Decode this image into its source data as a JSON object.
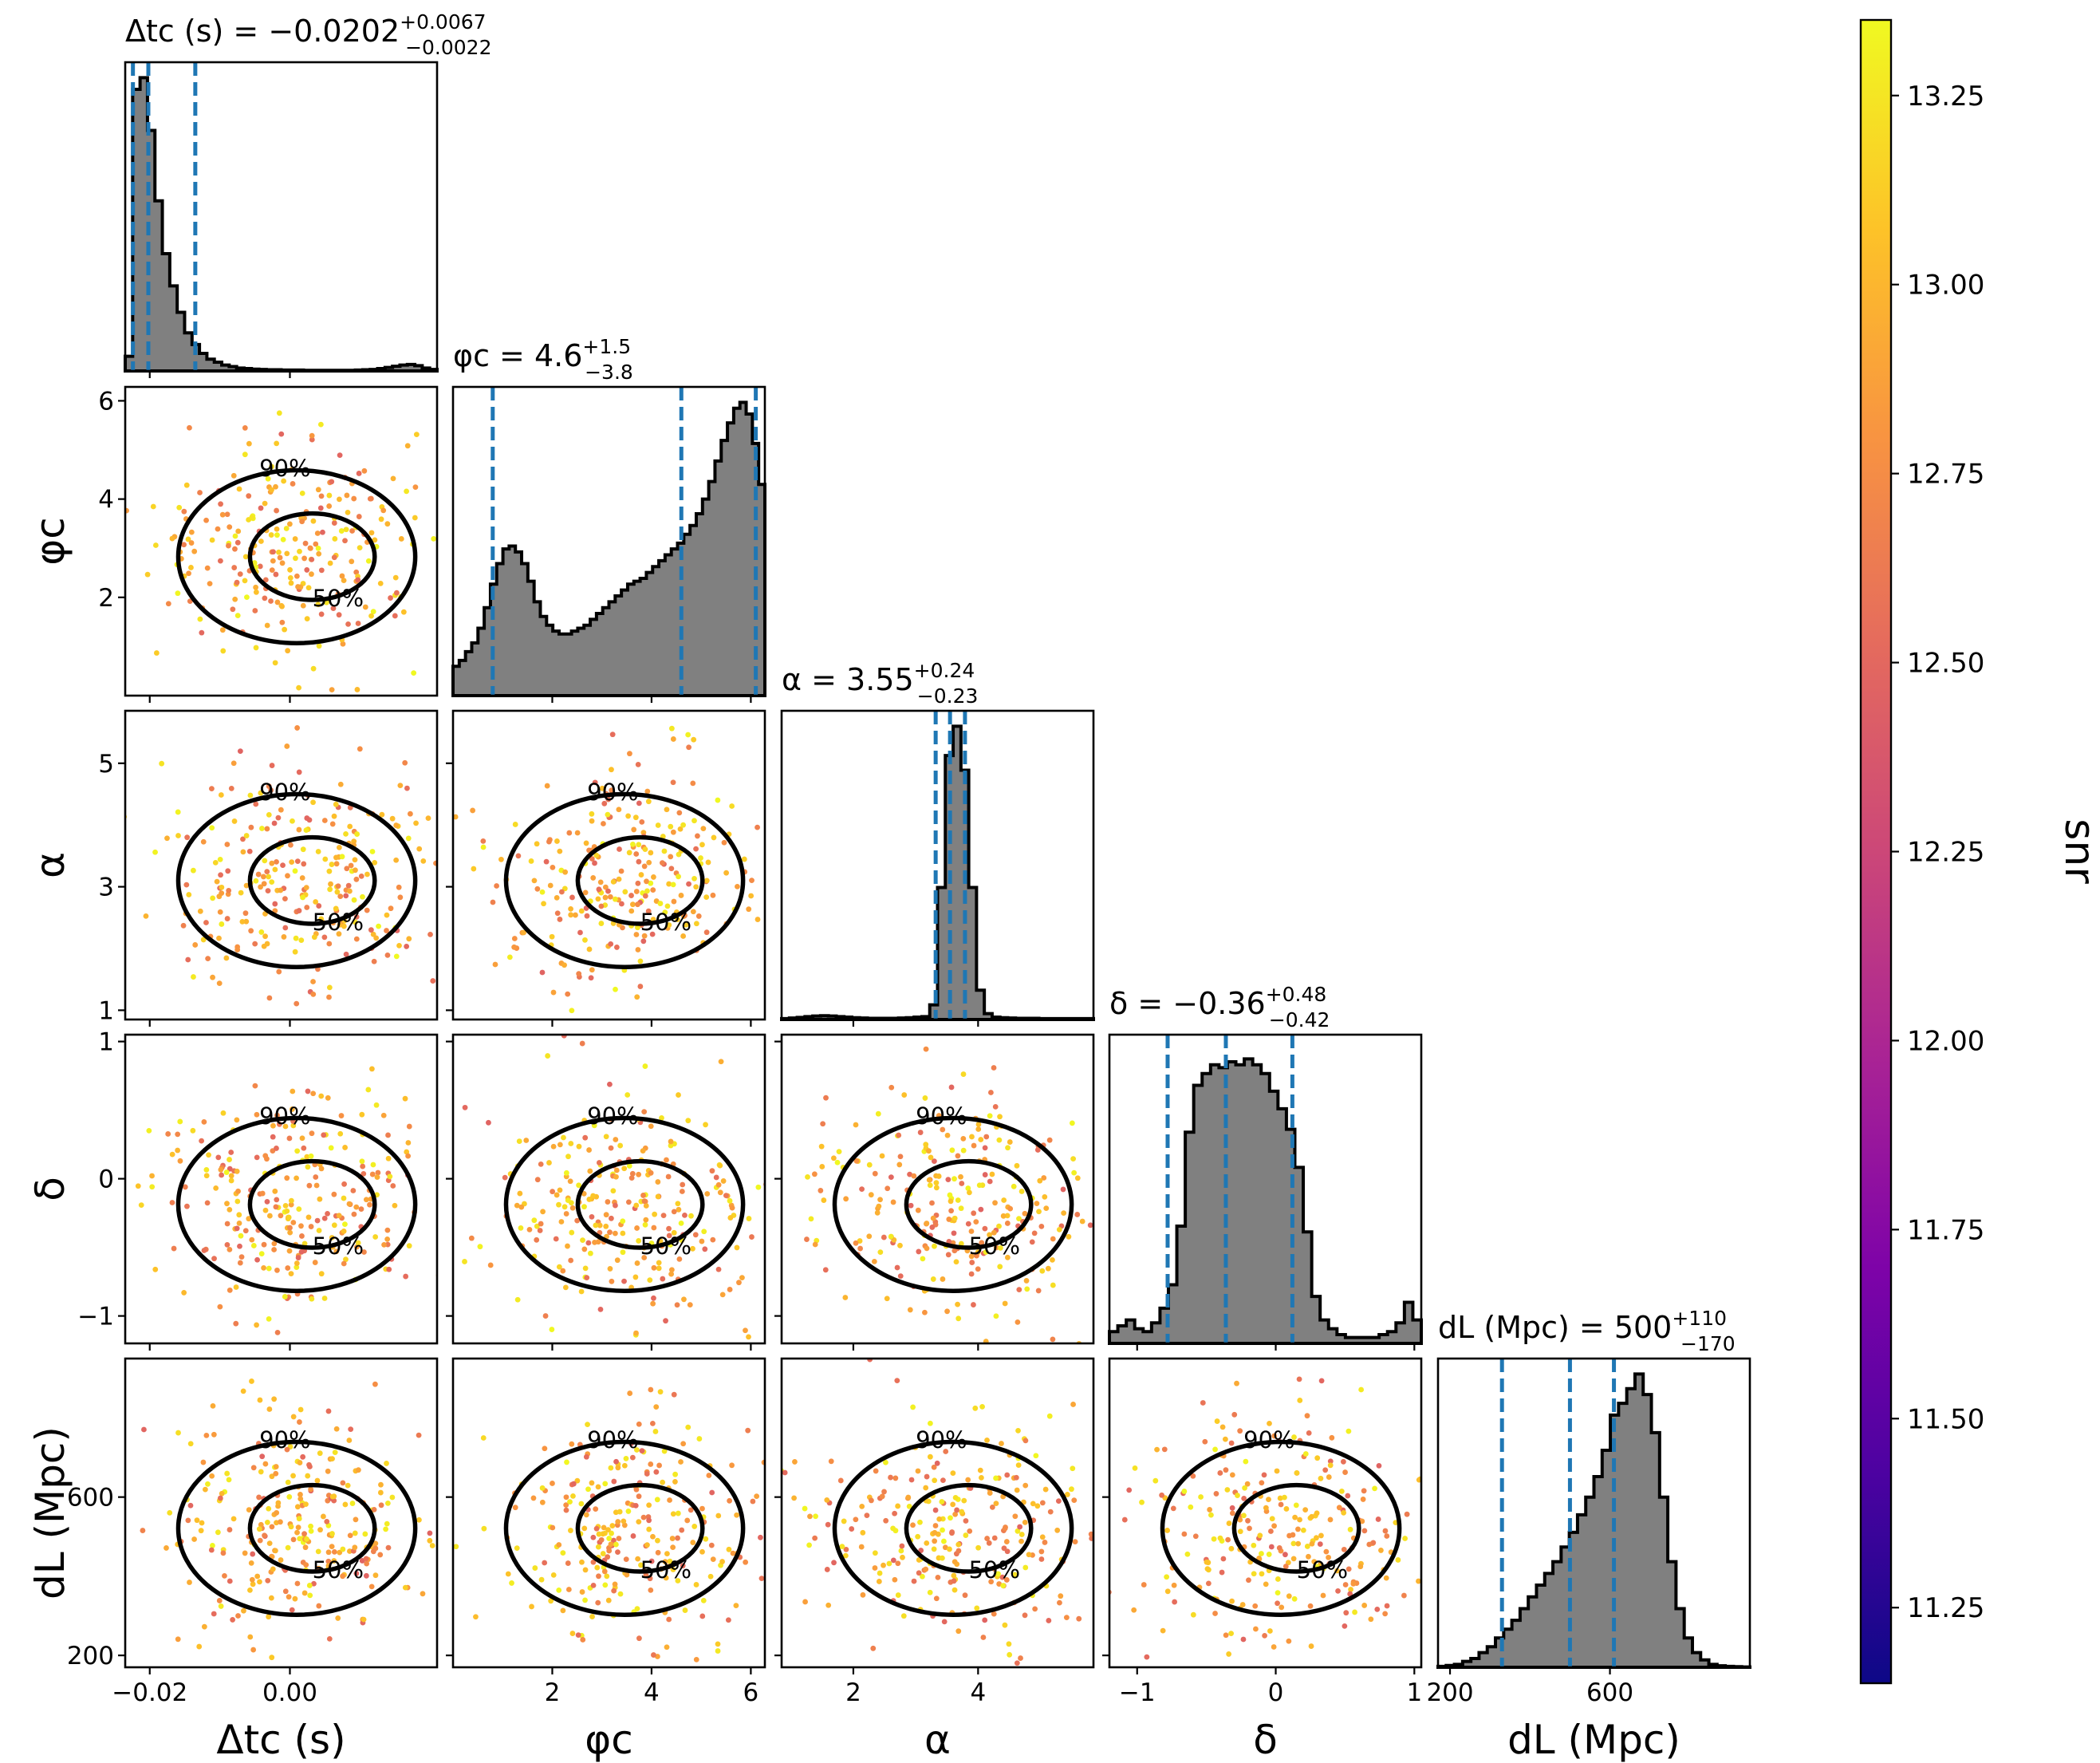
{
  "chart_data": {
    "type": "scatter",
    "layout": "corner",
    "colormap": "plasma",
    "colors": {
      "hist_fill": "#808080",
      "quantile_line": "#1f77b4",
      "contour": "#000000"
    },
    "parameters": [
      {
        "id": "tc",
        "title": "Δt_c (s) = −0.0202 (+0.0067 / −0.0022)",
        "title_main": "Δtc (s) = −0.0202",
        "title_plus": "+0.0067",
        "title_minus": "−0.0022",
        "label": "Δtc (s)",
        "range": [
          -0.0235,
          0.021
        ],
        "ticks": [
          -0.02,
          0.0
        ],
        "tick_labels": [
          "−0.02",
          "0.00"
        ],
        "median": -0.0202,
        "quantiles": [
          -0.0224,
          -0.0202,
          -0.0135
        ],
        "hist": [
          0.05,
          0.96,
          1.0,
          0.82,
          0.58,
          0.4,
          0.29,
          0.2,
          0.13,
          0.09,
          0.06,
          0.04,
          0.03,
          0.02,
          0.015,
          0.01,
          0.008,
          0.006,
          0.005,
          0.004,
          0.004,
          0.003,
          0.003,
          0.003,
          0.002,
          0.002,
          0.002,
          0.002,
          0.002,
          0.002,
          0.002,
          0.003,
          0.004,
          0.005,
          0.008,
          0.012,
          0.016,
          0.02,
          0.022,
          0.018,
          0.01,
          0.005
        ]
      },
      {
        "id": "phic",
        "title": "φ_c = 4.6 (+1.5 / −3.8)",
        "title_main": "φc = 4.6",
        "title_plus": "+1.5",
        "title_minus": "−3.8",
        "label": "φc",
        "range": [
          0,
          6.283
        ],
        "ticks": [
          2,
          4,
          6
        ],
        "tick_labels": [
          "2",
          "4",
          "6"
        ],
        "median": 4.6,
        "quantiles": [
          0.8,
          4.6,
          6.1
        ],
        "hist": [
          0.1,
          0.12,
          0.15,
          0.18,
          0.23,
          0.3,
          0.38,
          0.45,
          0.5,
          0.51,
          0.49,
          0.45,
          0.39,
          0.32,
          0.27,
          0.24,
          0.22,
          0.21,
          0.21,
          0.22,
          0.23,
          0.24,
          0.26,
          0.28,
          0.3,
          0.32,
          0.34,
          0.36,
          0.38,
          0.39,
          0.4,
          0.42,
          0.44,
          0.46,
          0.48,
          0.5,
          0.52,
          0.55,
          0.58,
          0.62,
          0.67,
          0.73,
          0.8,
          0.87,
          0.93,
          0.98,
          1.0,
          0.96,
          0.86,
          0.72
        ]
      },
      {
        "id": "alpha",
        "title": "α = 3.55 (+0.24 / −0.23)",
        "title_main": "α = 3.55",
        "title_plus": "+0.24",
        "title_minus": "−0.23",
        "label": "α",
        "range": [
          0.85,
          5.85
        ],
        "ticks": [
          2,
          4
        ],
        "tick_labels": [
          "2",
          "4"
        ],
        "median": 3.55,
        "quantiles": [
          3.32,
          3.55,
          3.79
        ],
        "hist": [
          0.003,
          0.005,
          0.007,
          0.01,
          0.012,
          0.013,
          0.012,
          0.01,
          0.008,
          0.006,
          0.005,
          0.004,
          0.004,
          0.004,
          0.004,
          0.005,
          0.006,
          0.008,
          0.01,
          0.05,
          0.45,
          0.9,
          1.0,
          0.85,
          0.45,
          0.1,
          0.02,
          0.008,
          0.006,
          0.005,
          0.004,
          0.004,
          0.004,
          0.003,
          0.003,
          0.003,
          0.003,
          0.003,
          0.003,
          0.003
        ]
      },
      {
        "id": "delta",
        "title": "δ = −0.36 (+0.48 / −0.42)",
        "title_main": "δ = −0.36",
        "title_plus": "+0.48",
        "title_minus": "−0.42",
        "label": "δ",
        "range": [
          -1.2,
          1.05
        ],
        "ticks": [
          -1,
          0,
          1
        ],
        "tick_labels": [
          "−1",
          "0",
          "1"
        ],
        "median": -0.36,
        "quantiles": [
          -0.78,
          -0.36,
          0.12
        ],
        "hist": [
          0.04,
          0.06,
          0.08,
          0.05,
          0.04,
          0.07,
          0.12,
          0.2,
          0.4,
          0.72,
          0.88,
          0.92,
          0.95,
          0.94,
          0.96,
          0.95,
          0.97,
          0.95,
          0.92,
          0.86,
          0.8,
          0.73,
          0.6,
          0.38,
          0.16,
          0.08,
          0.05,
          0.03,
          0.02,
          0.02,
          0.02,
          0.02,
          0.03,
          0.04,
          0.07,
          0.14,
          0.08
        ]
      },
      {
        "id": "dl",
        "title": "d_L (Mpc) = 500 (+110 / −170)",
        "title_main": "dL (Mpc) = 500",
        "title_plus": "+110",
        "title_minus": "−170",
        "label": "dL (Mpc)",
        "range": [
          170,
          950
        ],
        "ticks": [
          200,
          600
        ],
        "tick_labels": [
          "200",
          "600"
        ],
        "median": 500,
        "quantiles": [
          330,
          500,
          610
        ],
        "hist": [
          0.003,
          0.006,
          0.01,
          0.02,
          0.03,
          0.05,
          0.07,
          0.1,
          0.13,
          0.16,
          0.2,
          0.24,
          0.28,
          0.32,
          0.36,
          0.41,
          0.46,
          0.52,
          0.58,
          0.65,
          0.74,
          0.86,
          0.9,
          0.95,
          1.0,
          0.93,
          0.8,
          0.58,
          0.36,
          0.2,
          0.1,
          0.05,
          0.025,
          0.01,
          0.005,
          0.003,
          0.002,
          0.001
        ]
      }
    ],
    "y_axes": {
      "phic": {
        "ticks": [
          2,
          4,
          6
        ],
        "tick_labels": [
          "2",
          "4",
          "6"
        ]
      },
      "alpha": {
        "ticks": [
          1,
          3,
          5
        ],
        "tick_labels": [
          "1",
          "3",
          "5"
        ]
      },
      "delta": {
        "ticks": [
          -1,
          0,
          1
        ],
        "tick_labels": [
          "−1",
          "0",
          "1"
        ]
      },
      "dl": {
        "ticks": [
          200,
          600
        ],
        "tick_labels": [
          "200",
          "600"
        ]
      }
    },
    "contour_labels": [
      "50%",
      "90%"
    ],
    "colorbar": {
      "label": "snr",
      "range": [
        11.15,
        13.35
      ],
      "ticks": [
        11.25,
        11.5,
        11.75,
        12.0,
        12.25,
        12.5,
        12.75,
        13.0,
        13.25
      ],
      "tick_labels": [
        "11.25",
        "11.50",
        "11.75",
        "12.00",
        "12.25",
        "12.50",
        "12.75",
        "13.00",
        "13.25"
      ]
    }
  }
}
